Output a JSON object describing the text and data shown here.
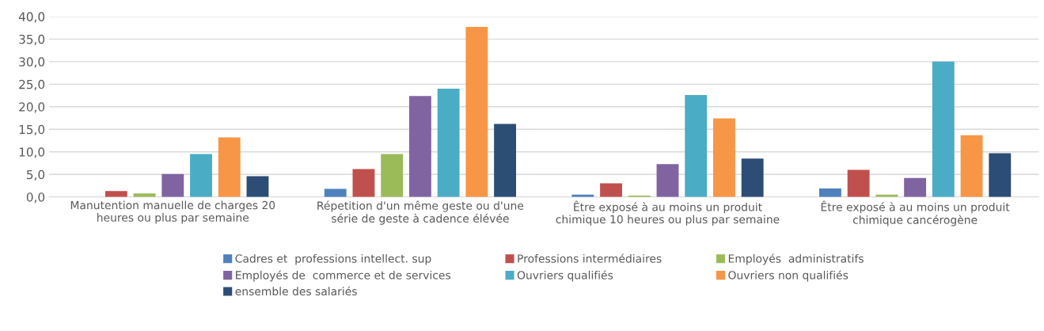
{
  "chart_data": {
    "type": "bar",
    "categories": [
      "Manutention manuelle de charges 20\nheures ou plus par semaine",
      "Répetition d'un même geste ou d'une\nsérie de geste à cadence élévée",
      "Être exposé à au moins un produit\nchimique 10 heures ou plus par semaine",
      "Être exposé à au moins un produit\nchimique cancérogène"
    ],
    "series": [
      {
        "name": "Cadres et  professions intellect. sup",
        "color": "#4f81bd",
        "values": [
          null,
          1.8,
          0.5,
          1.9
        ]
      },
      {
        "name": "Professions intermédiaires",
        "color": "#c0504d",
        "values": [
          1.3,
          6.2,
          3.0,
          6.0
        ]
      },
      {
        "name": "Employés  administratifs",
        "color": "#9bbb59",
        "values": [
          0.8,
          9.5,
          0.3,
          0.5
        ]
      },
      {
        "name": "Employés de  commerce et de services",
        "color": "#8064a2",
        "values": [
          5.1,
          22.4,
          7.3,
          4.2
        ]
      },
      {
        "name": "Ouvriers qualifiés",
        "color": "#4bacc6",
        "values": [
          9.5,
          24.0,
          22.6,
          30.0
        ]
      },
      {
        "name": "Ouvriers non qualifiés",
        "color": "#f79646",
        "values": [
          13.2,
          37.7,
          17.4,
          13.7
        ]
      },
      {
        "name": "ensemble des salariés",
        "color": "#2c4d75",
        "values": [
          4.6,
          16.2,
          8.5,
          9.7
        ]
      }
    ],
    "ylim": [
      0,
      40
    ],
    "yticks": [
      {
        "value": 0,
        "label": "0,0"
      },
      {
        "value": 5,
        "label": "5,0"
      },
      {
        "value": 10,
        "label": "10,0"
      },
      {
        "value": 15,
        "label": "15,0"
      },
      {
        "value": 20,
        "label": "20,0"
      },
      {
        "value": 25,
        "label": "25,0"
      },
      {
        "value": 30,
        "label": "30,0"
      },
      {
        "value": 35,
        "label": "35,0"
      },
      {
        "value": 40,
        "label": "40,0"
      }
    ],
    "grid": "y",
    "legend": "bottom"
  }
}
